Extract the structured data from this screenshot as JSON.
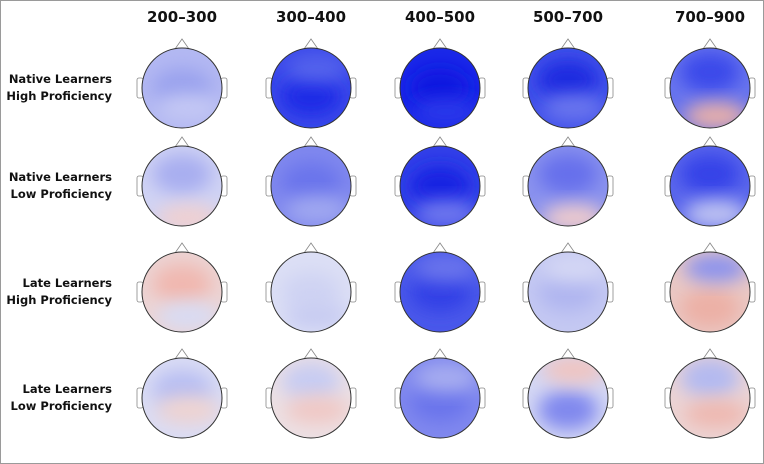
{
  "columns": [
    "200–300",
    "300–400",
    "400–500",
    "500–700",
    "700–900"
  ],
  "rows": [
    [
      "Native Learners",
      "High Proficiency"
    ],
    [
      "Native Learners",
      "Low Proficiency"
    ],
    [
      "Late Learners",
      "High Proficiency"
    ],
    [
      "Late Learners",
      "Low Proficiency"
    ]
  ]
}
